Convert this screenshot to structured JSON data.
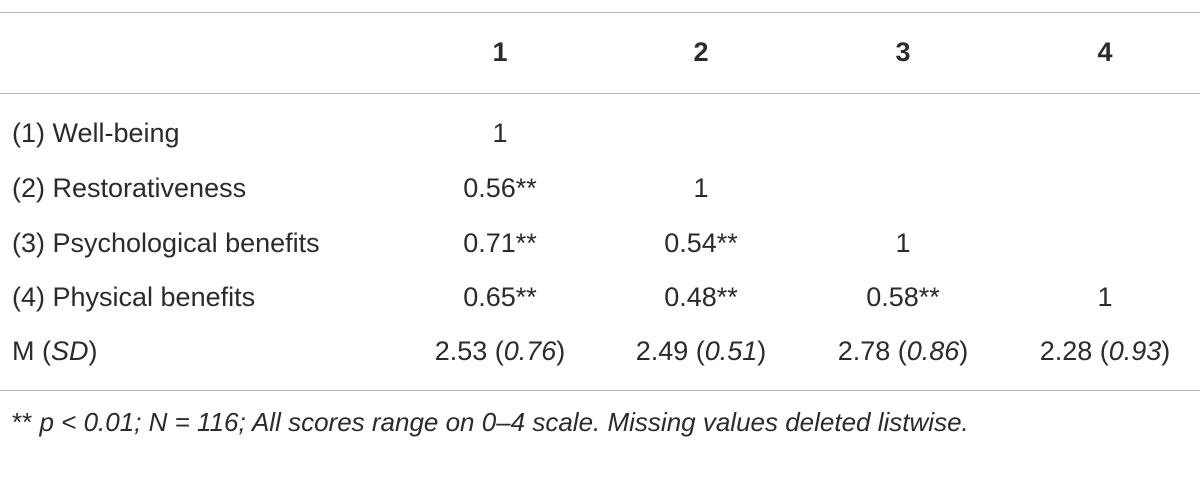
{
  "table": {
    "header": [
      "1",
      "2",
      "3",
      "4"
    ],
    "rows": [
      {
        "label": "(1) Well-being",
        "cells": [
          "1"
        ]
      },
      {
        "label": "(2) Restorativeness",
        "cells": [
          "0.56**",
          "1"
        ]
      },
      {
        "label": "(3) Psychological benefits",
        "cells": [
          "0.71**",
          "0.54**",
          "1"
        ]
      },
      {
        "label": "(4) Physical benefits",
        "cells": [
          "0.65**",
          "0.48**",
          "0.58**",
          "1"
        ]
      }
    ],
    "summary": {
      "label": [
        "M (",
        "SD",
        ")"
      ],
      "cells": [
        [
          "2.53 (",
          "0.76",
          ")"
        ],
        [
          "2.49 (",
          "0.51",
          ")"
        ],
        [
          "2.78 (",
          "0.86",
          ")"
        ],
        [
          "2.28 (",
          "0.93",
          ")"
        ]
      ]
    }
  },
  "footnote": [
    "**",
    " p < 0.01; N = 116; All scores range on 0–4 scale. Missing values deleted listwise."
  ]
}
